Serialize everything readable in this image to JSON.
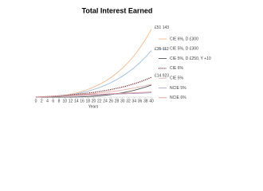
{
  "chart_data": {
    "type": "line",
    "title": "Total Interest Earned",
    "x_label": "Years",
    "x": [
      0,
      2,
      4,
      6,
      8,
      10,
      12,
      14,
      16,
      18,
      20,
      22,
      24,
      26,
      28,
      30,
      32,
      34,
      36,
      38,
      40
    ],
    "xlim": [
      0,
      40
    ],
    "xticks": [
      0,
      2,
      4,
      6,
      8,
      10,
      12,
      14,
      16,
      18,
      20,
      22,
      24,
      26,
      28,
      30,
      32,
      34,
      36,
      38,
      40
    ],
    "ylim": [
      0,
      60000
    ],
    "annotations": [
      "£51 143",
      "£35 112",
      "£14 923"
    ],
    "series": [
      {
        "name": "CIE 6%, D £300",
        "color": "#f4b183",
        "values": [
          0,
          27,
          167,
          434,
          845,
          1417,
          2170,
          3128,
          4309,
          5753,
          7482,
          9531,
          11951,
          14776,
          18060,
          21861,
          26241,
          31272,
          37038,
          43629,
          51143
        ]
      },
      {
        "name": "CIE 5%, D £300",
        "color": "#8fb4dc",
        "values": [
          0,
          22,
          135,
          349,
          674,
          1120,
          1703,
          2433,
          3328,
          4403,
          5678,
          7173,
          8910,
          10914,
          13212,
          15836,
          18817,
          22193,
          26005,
          30296,
          35112
        ]
      },
      {
        "name": "CIE 5%, D £250, Y +10",
        "color": "#404040",
        "values": [
          0,
          0,
          0,
          0,
          0,
          0,
          13,
          78,
          201,
          388,
          645,
          980,
          1400,
          1915,
          2533,
          3267,
          4127,
          5125,
          6279,
          7604,
          9110
        ]
      },
      {
        "name": "CIE 6%",
        "color": "#7b2c2c",
        "dashed": true,
        "values": [
          0,
          198,
          421,
          672,
          953,
          1270,
          1625,
          2025,
          2474,
          2978,
          3545,
          4181,
          4897,
          5700,
          6603,
          7618,
          8758,
          10039,
          11479,
          13096,
          14923
        ]
      },
      {
        "name": "CIE 5%",
        "color": "#e3a7a4",
        "values": [
          0,
          165,
          345,
          546,
          767,
          1010,
          1278,
          1574,
          1900,
          2259,
          2655,
          3092,
          3573,
          4104,
          4690,
          5335,
          6046,
          6831,
          7696,
          8649,
          9700
        ]
      },
      {
        "name": "NCIE 5%",
        "color": "#a99bc9",
        "values": [
          0,
          161,
          321,
          482,
          642,
          803,
          964,
          1124,
          1285,
          1445,
          1606,
          1767,
          1927,
          2088,
          2248,
          2409,
          2570,
          2730,
          2891,
          3051,
          3212
        ]
      },
      {
        "name": "NCIE 6%",
        "color": "#d48c8a",
        "values": [
          0,
          193,
          385,
          578,
          771,
          964,
          1156,
          1349,
          1542,
          1734,
          1927,
          2120,
          2313,
          2505,
          2698,
          2891,
          3084,
          3276,
          3469,
          3662,
          3854
        ]
      }
    ]
  }
}
